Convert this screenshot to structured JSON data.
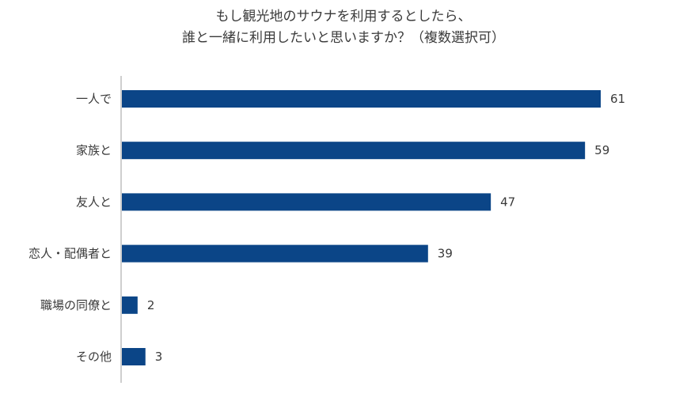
{
  "chart_data": {
    "type": "bar",
    "orientation": "horizontal",
    "title_lines": [
      "もし観光地のサウナを利用するとしたら、",
      "誰と一緒に利用したいと思いますか？（複数選択可）"
    ],
    "categories": [
      "一人で",
      "家族と",
      "友人と",
      "恋人・配偶者と",
      "職場の同僚と",
      "その他"
    ],
    "values": [
      61,
      59,
      47,
      39,
      2,
      3
    ],
    "xlim": [
      0,
      62
    ],
    "grid": false,
    "bar_color": "#0b4587",
    "axis_color": "#bfbfbf"
  }
}
